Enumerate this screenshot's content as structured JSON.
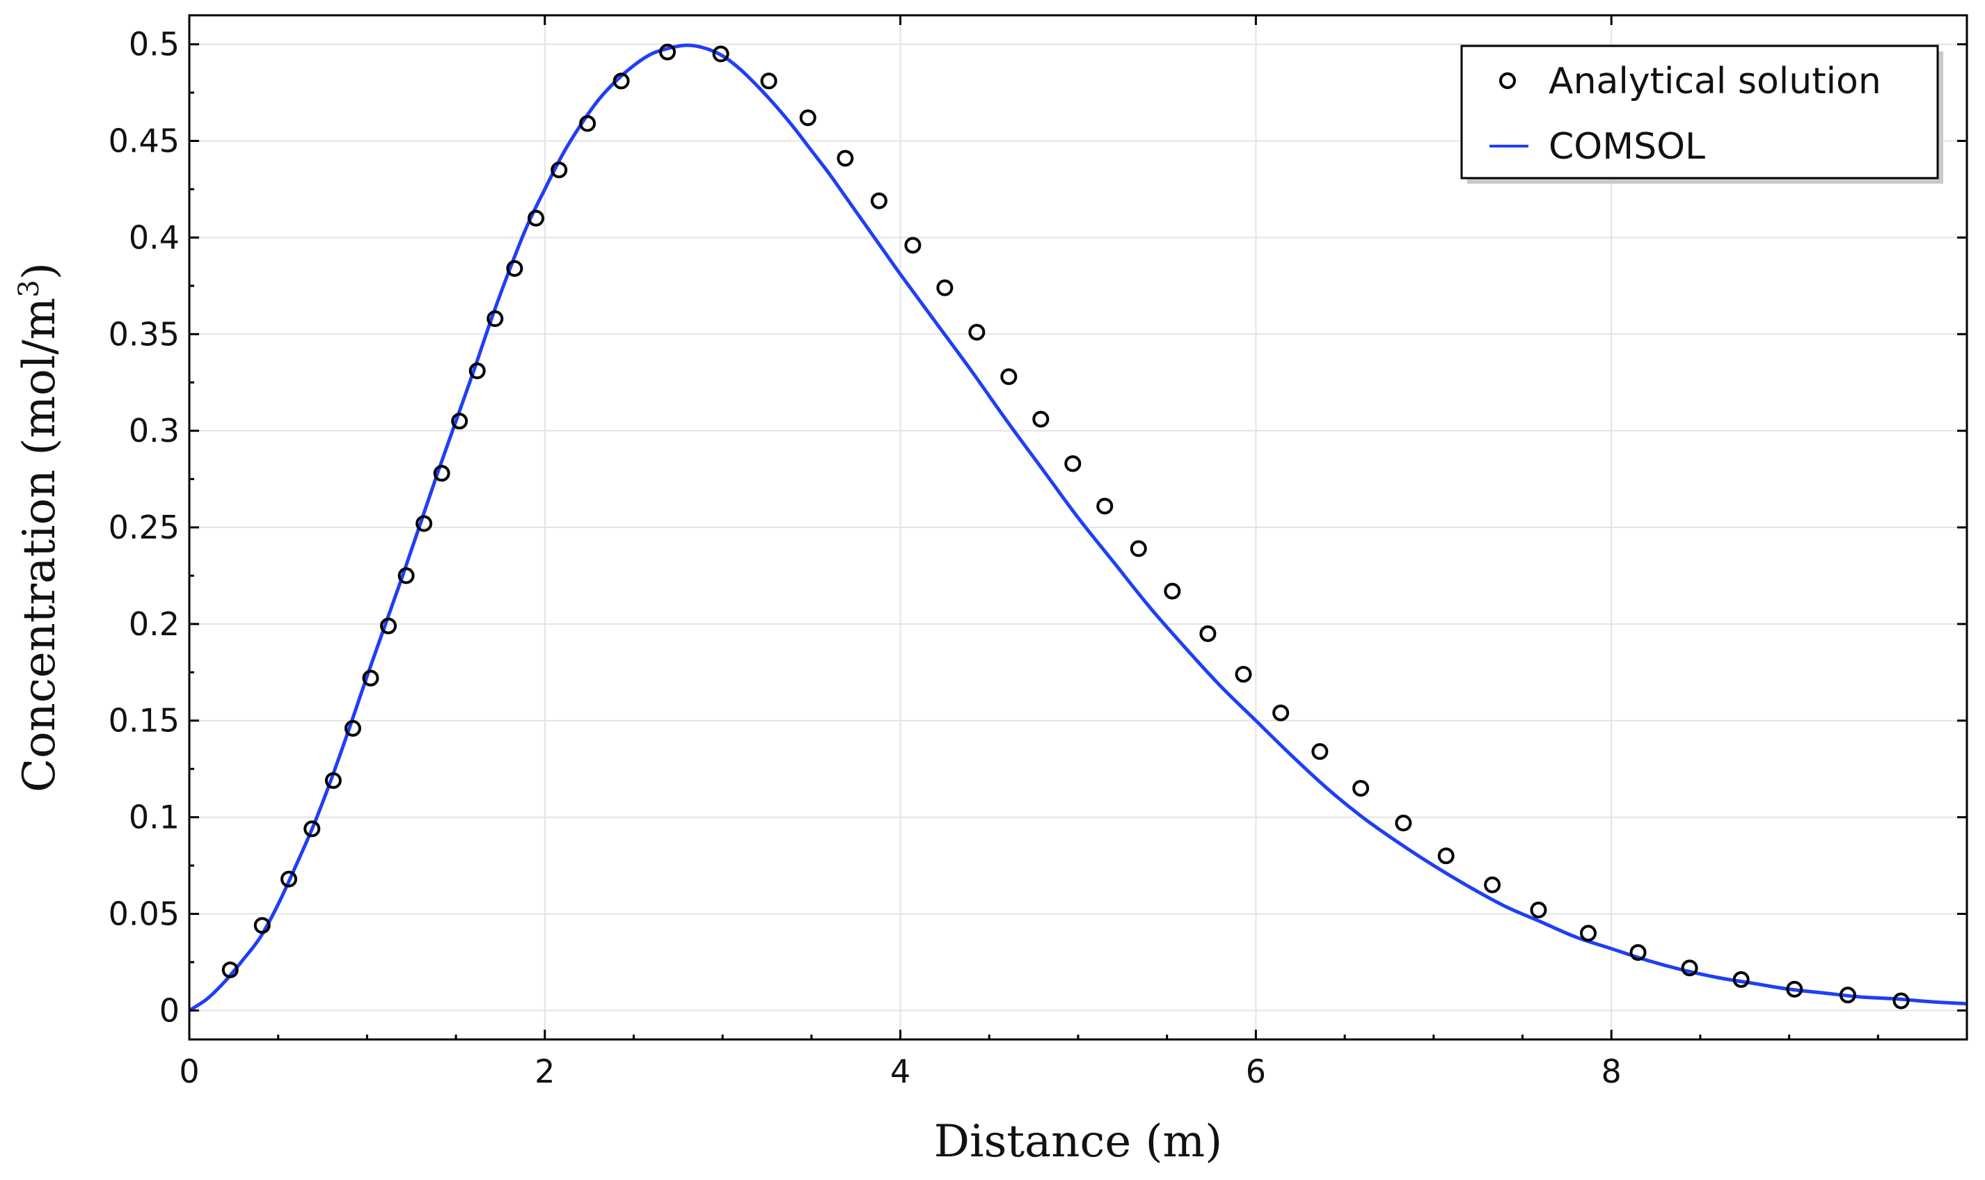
{
  "chart_data": {
    "type": "line",
    "xlabel": "Distance (m)",
    "ylabel_main": "Concentration (mol/m",
    "ylabel_sup": "3",
    "ylabel_close": ")",
    "xlim": [
      0,
      10
    ],
    "ylim": [
      -0.015,
      0.515
    ],
    "x_ticks": [
      0,
      2,
      4,
      6,
      8
    ],
    "x_tick_labels": [
      "0",
      "2",
      "4",
      "6",
      "8"
    ],
    "y_ticks": [
      0,
      0.05,
      0.1,
      0.15,
      0.2,
      0.25,
      0.3,
      0.35,
      0.4,
      0.45,
      0.5
    ],
    "y_tick_labels": [
      "0",
      "0.05",
      "0.1",
      "0.15",
      "0.2",
      "0.25",
      "0.3",
      "0.35",
      "0.4",
      "0.45",
      "0.5"
    ],
    "grid": true,
    "legend_position": "top-right",
    "series": [
      {
        "name": "Analytical solution",
        "style": "markers",
        "marker": "open-circle",
        "color": "#000000",
        "x": [
          0.23,
          0.41,
          0.56,
          0.69,
          0.81,
          0.92,
          1.02,
          1.12,
          1.22,
          1.32,
          1.42,
          1.52,
          1.62,
          1.72,
          1.83,
          1.95,
          2.08,
          2.24,
          2.43,
          2.69,
          2.99,
          3.26,
          3.48,
          3.69,
          3.88,
          4.07,
          4.25,
          4.43,
          4.61,
          4.79,
          4.97,
          5.15,
          5.34,
          5.53,
          5.73,
          5.93,
          6.14,
          6.36,
          6.59,
          6.83,
          7.07,
          7.33,
          7.59,
          7.87,
          8.15,
          8.44,
          8.73,
          9.03,
          9.33,
          9.63
        ],
        "y": [
          0.021,
          0.044,
          0.068,
          0.094,
          0.119,
          0.146,
          0.172,
          0.199,
          0.225,
          0.252,
          0.278,
          0.305,
          0.331,
          0.358,
          0.384,
          0.41,
          0.435,
          0.459,
          0.481,
          0.496,
          0.495,
          0.481,
          0.462,
          0.441,
          0.419,
          0.396,
          0.374,
          0.351,
          0.328,
          0.306,
          0.283,
          0.261,
          0.239,
          0.217,
          0.195,
          0.174,
          0.154,
          0.134,
          0.115,
          0.097,
          0.08,
          0.065,
          0.052,
          0.04,
          0.03,
          0.022,
          0.016,
          0.011,
          0.008,
          0.005
        ]
      },
      {
        "name": "COMSOL",
        "style": "line",
        "color": "#1f3ff5",
        "x": [
          0,
          0.1,
          0.2,
          0.3,
          0.4,
          0.5,
          0.6,
          0.7,
          0.8,
          0.9,
          1.0,
          1.1,
          1.2,
          1.3,
          1.4,
          1.5,
          1.6,
          1.7,
          1.8,
          1.9,
          2.0,
          2.1,
          2.2,
          2.3,
          2.4,
          2.5,
          2.6,
          2.7,
          2.8,
          2.9,
          3.0,
          3.1,
          3.2,
          3.3,
          3.4,
          3.5,
          3.6,
          3.7,
          3.8,
          3.9,
          4.0,
          4.2,
          4.4,
          4.6,
          4.8,
          5.0,
          5.2,
          5.4,
          5.6,
          5.8,
          6.0,
          6.2,
          6.4,
          6.6,
          6.8,
          7.0,
          7.2,
          7.4,
          7.6,
          7.8,
          8.0,
          8.2,
          8.4,
          8.6,
          8.8,
          9.0,
          9.2,
          9.4,
          9.6,
          9.8,
          10.0
        ],
        "y": [
          0.0,
          0.006,
          0.015,
          0.026,
          0.038,
          0.055,
          0.075,
          0.096,
          0.12,
          0.146,
          0.173,
          0.199,
          0.225,
          0.252,
          0.279,
          0.305,
          0.331,
          0.358,
          0.383,
          0.406,
          0.425,
          0.443,
          0.458,
          0.471,
          0.481,
          0.489,
          0.495,
          0.498,
          0.4995,
          0.498,
          0.494,
          0.487,
          0.478,
          0.468,
          0.457,
          0.445,
          0.433,
          0.42,
          0.407,
          0.394,
          0.381,
          0.356,
          0.331,
          0.305,
          0.28,
          0.255,
          0.232,
          0.209,
          0.188,
          0.168,
          0.15,
          0.132,
          0.115,
          0.1,
          0.087,
          0.075,
          0.064,
          0.054,
          0.046,
          0.038,
          0.032,
          0.026,
          0.021,
          0.017,
          0.014,
          0.011,
          0.009,
          0.007,
          0.006,
          0.0045,
          0.0035
        ]
      }
    ]
  }
}
